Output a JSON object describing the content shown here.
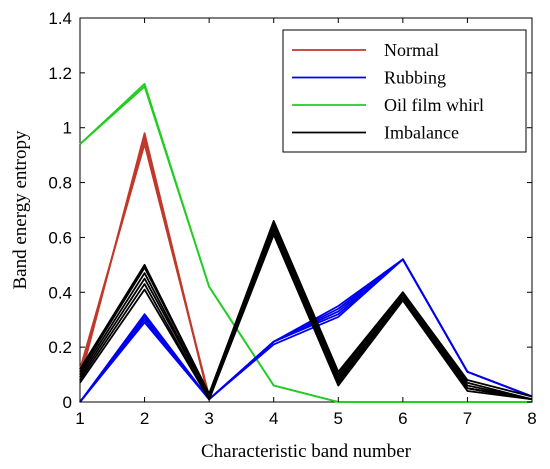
{
  "chart_data": {
    "type": "line",
    "title": "",
    "xlabel": "Characteristic band number",
    "ylabel": "Band energy entropy",
    "xlim": [
      1,
      8
    ],
    "ylim": [
      0,
      1.4
    ],
    "xticks": [
      "1",
      "2",
      "3",
      "4",
      "5",
      "6",
      "7",
      "8"
    ],
    "yticks": [
      "0",
      "0.2",
      "0.4",
      "0.6",
      "0.8",
      "1",
      "1.2",
      "1.4"
    ],
    "grid": false,
    "legend_position": "top-right",
    "x": [
      1,
      2,
      3,
      4,
      5,
      6,
      7,
      8
    ],
    "series": [
      {
        "name": "Normal",
        "color": "#c0392b",
        "runs": [
          [
            0.08,
            0.98,
            0.01,
            0.65,
            0.08,
            0.38,
            0.05,
            0.01
          ],
          [
            0.09,
            0.97,
            0.01,
            0.65,
            0.08,
            0.38,
            0.05,
            0.01
          ],
          [
            0.1,
            0.96,
            0.01,
            0.64,
            0.08,
            0.38,
            0.05,
            0.01
          ],
          [
            0.11,
            0.95,
            0.02,
            0.64,
            0.08,
            0.38,
            0.05,
            0.01
          ],
          [
            0.12,
            0.94,
            0.02,
            0.64,
            0.08,
            0.38,
            0.05,
            0.01
          ]
        ]
      },
      {
        "name": "Rubbing",
        "color": "#0000ee",
        "runs": [
          [
            0.0,
            0.29,
            0.01,
            0.21,
            0.31,
            0.52,
            0.11,
            0.02
          ],
          [
            0.0,
            0.3,
            0.01,
            0.22,
            0.32,
            0.52,
            0.11,
            0.02
          ],
          [
            0.0,
            0.31,
            0.01,
            0.22,
            0.33,
            0.52,
            0.11,
            0.02
          ],
          [
            0.0,
            0.32,
            0.01,
            0.22,
            0.34,
            0.52,
            0.11,
            0.02
          ],
          [
            0.0,
            0.31,
            0.01,
            0.22,
            0.35,
            0.52,
            0.11,
            0.02
          ]
        ]
      },
      {
        "name": "Oil film whirl",
        "color": "#22cc22",
        "runs": [
          [
            0.94,
            1.15,
            0.42,
            0.06,
            0.0,
            0.0,
            0.0,
            0.0
          ],
          [
            0.94,
            1.16,
            0.42,
            0.06,
            0.0,
            0.0,
            0.0,
            0.0
          ]
        ]
      },
      {
        "name": "Imbalance",
        "color": "#000000",
        "runs": [
          [
            0.07,
            0.41,
            0.01,
            0.61,
            0.06,
            0.37,
            0.04,
            0.01
          ],
          [
            0.08,
            0.43,
            0.01,
            0.62,
            0.07,
            0.38,
            0.05,
            0.01
          ],
          [
            0.09,
            0.45,
            0.02,
            0.63,
            0.08,
            0.38,
            0.05,
            0.01
          ],
          [
            0.1,
            0.47,
            0.02,
            0.64,
            0.09,
            0.39,
            0.06,
            0.01
          ],
          [
            0.11,
            0.49,
            0.03,
            0.65,
            0.1,
            0.4,
            0.07,
            0.01
          ],
          [
            0.12,
            0.5,
            0.03,
            0.66,
            0.11,
            0.4,
            0.08,
            0.02
          ]
        ]
      }
    ],
    "legend": [
      "Normal",
      "Rubbing",
      "Oil film whirl",
      "Imbalance"
    ]
  }
}
